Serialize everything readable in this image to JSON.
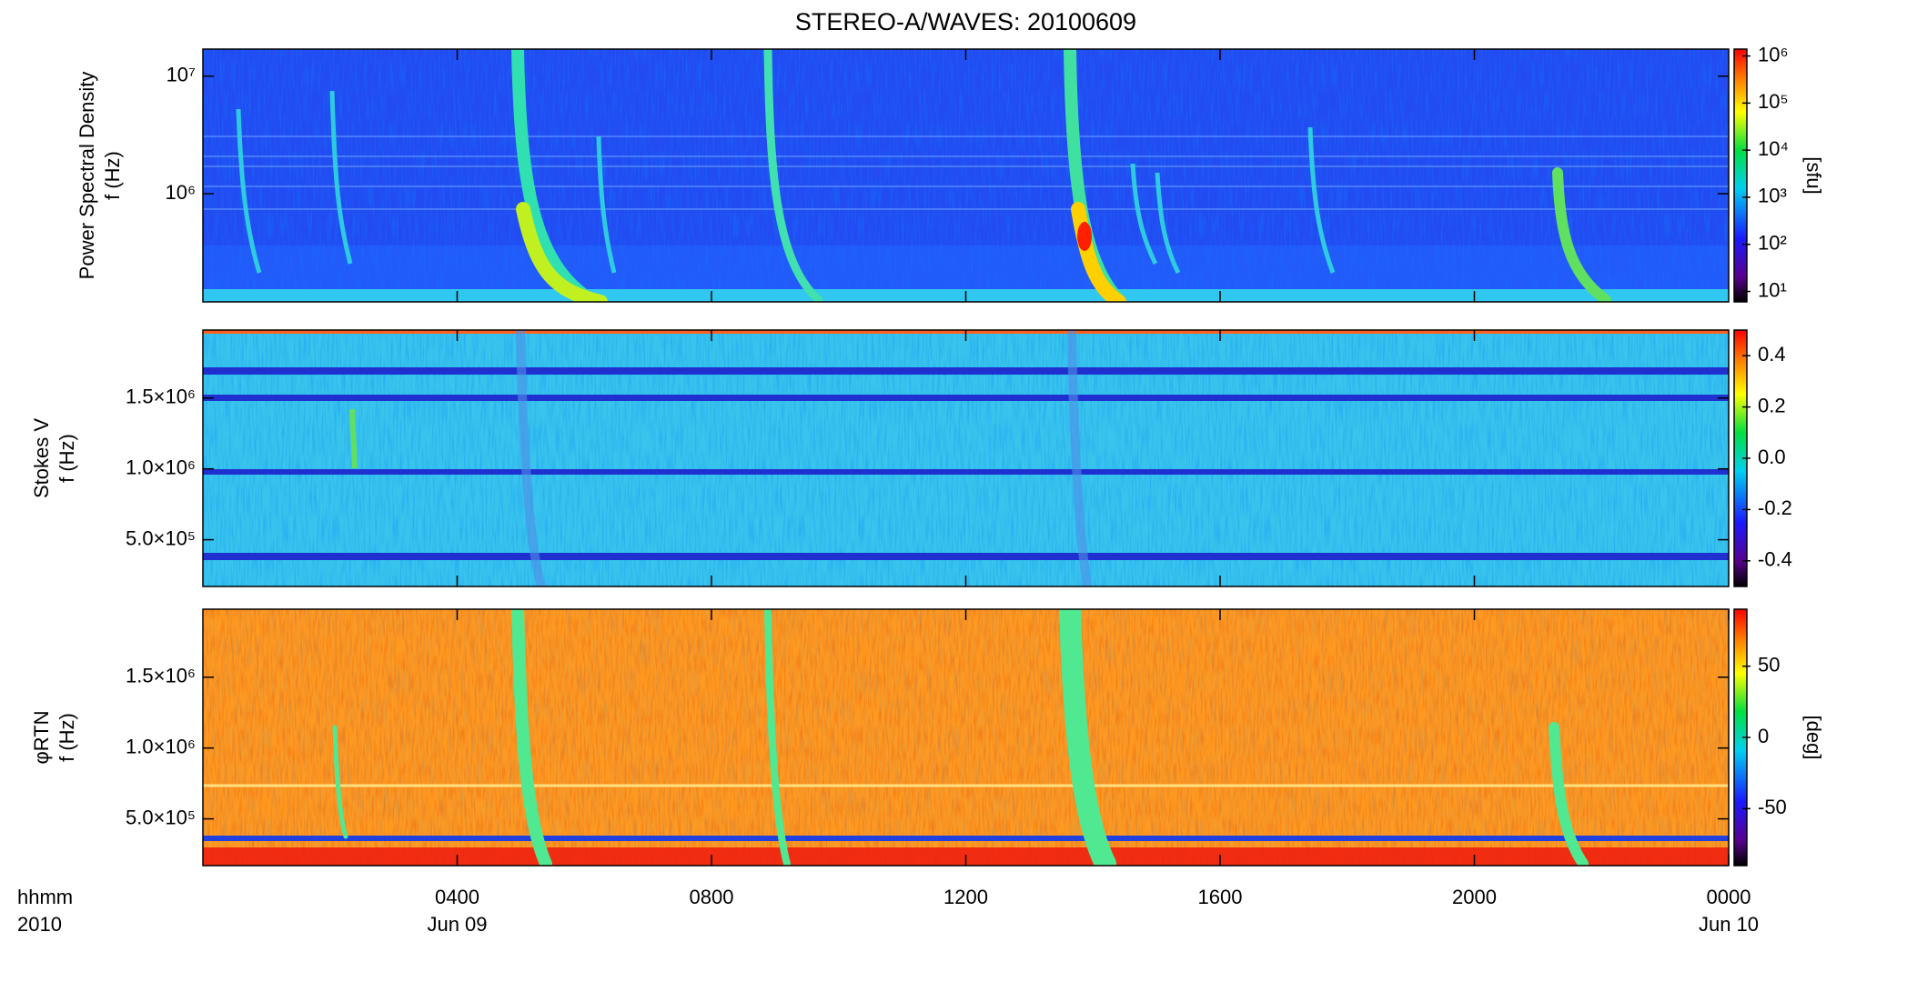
{
  "chart_data": [
    {
      "type": "heatmap",
      "title": "STEREO-A/WAVES: 20100609",
      "ylabel": [
        "Power Spectral Density",
        "f (Hz)"
      ],
      "ylog": true,
      "ylim": [
        120000,
        17000000
      ],
      "yticks": [
        {
          "value": 1000000,
          "label": "10⁶"
        },
        {
          "value": 10000000,
          "label": "10⁷"
        }
      ],
      "xlim": [
        0,
        24
      ],
      "xticks": [
        4,
        8,
        12,
        16,
        20
      ],
      "colorbar": {
        "log": true,
        "clim": [
          6,
          1400000
        ],
        "ticks": [
          {
            "value": 10,
            "label": "10¹"
          },
          {
            "value": 100,
            "label": "10²"
          },
          {
            "value": 1000,
            "label": "10³"
          },
          {
            "value": 10000,
            "label": "10⁴"
          },
          {
            "value": 100000,
            "label": "10⁵"
          },
          {
            "value": 1000000,
            "label": "10⁶"
          }
        ],
        "label": "[sfu]"
      }
    },
    {
      "type": "heatmap",
      "ylabel": [
        "Stokes V",
        "f (Hz)"
      ],
      "ylog": false,
      "ylim": [
        170000,
        1980000
      ],
      "yticks": [
        {
          "value": 500000,
          "label": "5.0×10⁵"
        },
        {
          "value": 1000000,
          "label": "1.0×10⁶"
        },
        {
          "value": 1500000,
          "label": "1.5×10⁶"
        }
      ],
      "xlim": [
        0,
        24
      ],
      "xticks": [
        4,
        8,
        12,
        16,
        20
      ],
      "colorbar": {
        "log": false,
        "clim": [
          -0.5,
          0.5
        ],
        "ticks": [
          0.4,
          0.2,
          {
            "value": 0,
            "label": "0.0"
          },
          -0.2,
          -0.4
        ]
      }
    },
    {
      "type": "heatmap",
      "ylabel": [
        "φRTN",
        "f (Hz)"
      ],
      "ylog": false,
      "ylim": [
        170000,
        1980000
      ],
      "yticks": [
        {
          "value": 500000,
          "label": "5.0×10⁵"
        },
        {
          "value": 1000000,
          "label": "1.0×10⁶"
        },
        {
          "value": 1500000,
          "label": "1.5×10⁶"
        }
      ],
      "xlim": [
        0,
        24
      ],
      "xticks": [
        {
          "value": 4,
          "label": "0400"
        },
        {
          "value": 8,
          "label": "0800"
        },
        {
          "value": 12,
          "label": "1200"
        },
        {
          "value": 16,
          "label": "1600"
        },
        {
          "value": 20,
          "label": "2000"
        },
        {
          "value": 24,
          "label": "0000"
        }
      ],
      "xdates": [
        {
          "value": 4,
          "label": "Jun 09"
        },
        {
          "value": 24,
          "label": "Jun 10"
        }
      ],
      "xrowlabels": [
        "hhmm",
        "2010"
      ],
      "colorbar": {
        "log": false,
        "clim": [
          -90,
          90
        ],
        "ticks": [
          50,
          0,
          -50
        ],
        "label": "[deg]"
      }
    }
  ]
}
